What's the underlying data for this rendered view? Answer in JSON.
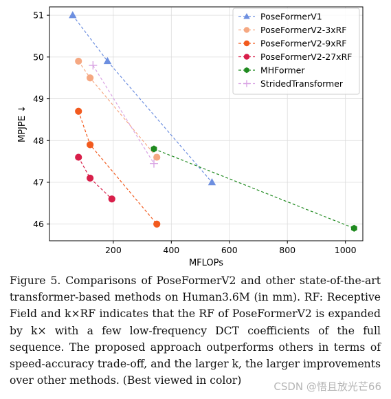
{
  "chart_data": {
    "type": "line",
    "title": "",
    "xlabel": "MFLOPs",
    "ylabel": "MPJPE ↓",
    "xlim": [
      -20,
      1060
    ],
    "ylim": [
      45.6,
      51.2
    ],
    "xticks": [
      200,
      400,
      600,
      800,
      1000
    ],
    "yticks": [
      46,
      47,
      48,
      49,
      50,
      51
    ],
    "grid": true,
    "legend_position": "top-right",
    "series": [
      {
        "name": "PoseFormerV1",
        "color": "#6d8fe0",
        "marker": "triangle",
        "dashed": true,
        "points": [
          [
            60,
            51.0
          ],
          [
            180,
            49.9
          ],
          [
            540,
            47.0
          ]
        ]
      },
      {
        "name": "PoseFormerV2-3xRF",
        "color": "#f5a882",
        "marker": "circle",
        "dashed": true,
        "points": [
          [
            80,
            49.9
          ],
          [
            120,
            49.5
          ],
          [
            350,
            47.6
          ]
        ]
      },
      {
        "name": "PoseFormerV2-9xRF",
        "color": "#f25a1e",
        "marker": "circle",
        "dashed": true,
        "points": [
          [
            80,
            48.7
          ],
          [
            120,
            47.9
          ],
          [
            350,
            46.0
          ]
        ]
      },
      {
        "name": "PoseFormerV2-27xRF",
        "color": "#d81f4a",
        "marker": "circle",
        "dashed": true,
        "points": [
          [
            80,
            47.6
          ],
          [
            120,
            47.1
          ],
          [
            195,
            46.6
          ]
        ]
      },
      {
        "name": "MHFormer",
        "color": "#1f8a1f",
        "marker": "hexagon",
        "dashed": true,
        "points": [
          [
            340,
            47.8
          ],
          [
            1030,
            45.9
          ]
        ]
      },
      {
        "name": "StridedTransformer",
        "color": "#d9a3e3",
        "marker": "plus",
        "dashed": true,
        "points": [
          [
            130,
            49.8
          ],
          [
            340,
            47.45
          ]
        ]
      }
    ]
  },
  "caption": "Figure 5. Comparisons of PoseFormerV2 and other state-of-the-art transformer-based methods on Human3.6M (in mm). RF: Receptive Field and k×RF indicates that the RF of PoseFormerV2 is expanded by k× with a few low-frequency DCT coefficients of the full sequence. The proposed approach outperforms others in terms of speed-accuracy trade-off, and the larger k, the larger improvements over other methods. (Best viewed in color)",
  "watermark": "CSDN @悟且放光芒66"
}
